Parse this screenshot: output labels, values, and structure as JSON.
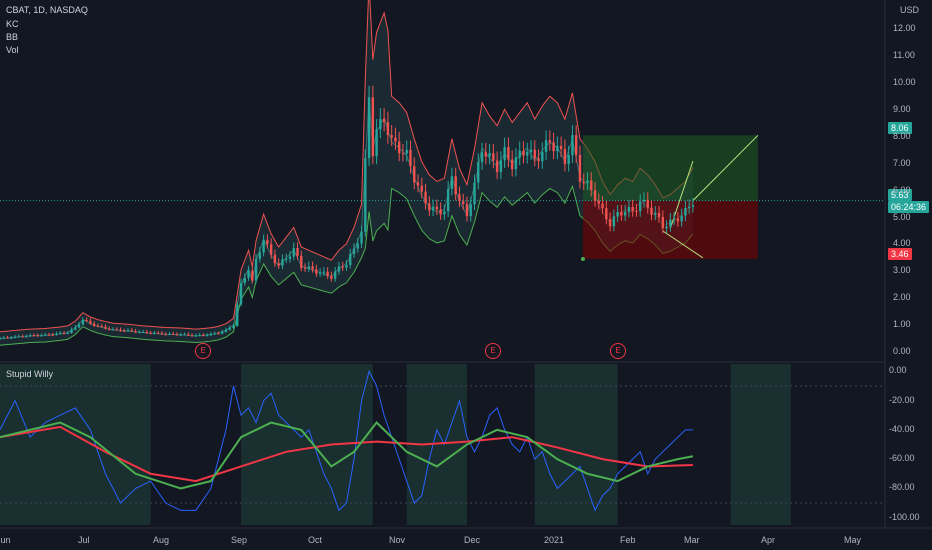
{
  "header": {
    "symbol_line": "CBAT, 1D, NASDAQ",
    "indicators": [
      "KC",
      "BB",
      "Vol"
    ],
    "currency": "USD"
  },
  "price_axis": {
    "labels": [
      "12.00",
      "11.00",
      "10.00",
      "9.00",
      "8.00",
      "7.00",
      "6.00",
      "5.00",
      "4.00",
      "3.00",
      "2.00",
      "1.00",
      "0.00"
    ],
    "tags": {
      "target": "8.06",
      "last": "5.63",
      "countdown": "06:24:36",
      "stop": "3.46"
    }
  },
  "time_axis": {
    "labels": [
      "Jun",
      "Jul",
      "Aug",
      "Sep",
      "Oct",
      "Nov",
      "Dec",
      "2021",
      "Feb",
      "Mar",
      "Apr",
      "May"
    ]
  },
  "earnings_badge": "E",
  "oscillator": {
    "title": "Stupid Willy",
    "labels": [
      "0.00",
      "-20.00",
      "-40.00",
      "-60.00",
      "-80.00",
      "-100.00"
    ]
  },
  "colors": {
    "background": "#131722",
    "bull": "#26a69a",
    "bear": "#ef5350",
    "band_upper": "#ef5350",
    "band_lower": "#4caf50",
    "target_zone": "#1b5e20",
    "stop_zone": "#7f0000",
    "osc_line": "#2962ff",
    "osc_fast": "#4caf50",
    "osc_slow": "#f23645"
  },
  "chart_data": {
    "type": "candlestick",
    "price_ylim": [
      -0.3,
      12.5
    ],
    "close_series": [
      [
        0,
        0.5
      ],
      [
        4,
        0.55
      ],
      [
        8,
        0.6
      ],
      [
        12,
        0.62
      ],
      [
        16,
        0.68
      ],
      [
        18,
        0.72
      ],
      [
        20,
        0.9
      ],
      [
        22,
        1.2
      ],
      [
        24,
        1.05
      ],
      [
        26,
        0.95
      ],
      [
        28,
        0.88
      ],
      [
        30,
        0.82
      ],
      [
        32,
        0.8
      ],
      [
        34,
        0.78
      ],
      [
        36,
        0.75
      ],
      [
        38,
        0.72
      ],
      [
        40,
        0.7
      ],
      [
        42,
        0.68
      ],
      [
        44,
        0.66
      ],
      [
        46,
        0.65
      ],
      [
        48,
        0.64
      ],
      [
        50,
        0.62
      ],
      [
        52,
        0.6
      ],
      [
        54,
        0.62
      ],
      [
        56,
        0.65
      ],
      [
        58,
        0.7
      ],
      [
        60,
        0.8
      ],
      [
        62,
        1.0
      ],
      [
        64,
        2.5
      ],
      [
        66,
        3.1
      ],
      [
        67,
        2.6
      ],
      [
        68,
        3.4
      ],
      [
        70,
        4.2
      ],
      [
        72,
        3.6
      ],
      [
        74,
        3.2
      ],
      [
        76,
        3.5
      ],
      [
        78,
        3.8
      ],
      [
        80,
        3.2
      ],
      [
        82,
        3.1
      ],
      [
        84,
        3.0
      ],
      [
        86,
        2.9
      ],
      [
        88,
        2.8
      ],
      [
        90,
        3.1
      ],
      [
        92,
        3.3
      ],
      [
        94,
        3.8
      ],
      [
        96,
        4.5
      ],
      [
        98,
        9.5
      ],
      [
        99,
        7.5
      ],
      [
        100,
        8.2
      ],
      [
        102,
        8.7
      ],
      [
        104,
        7.8
      ],
      [
        106,
        7.6
      ],
      [
        108,
        7.3
      ],
      [
        110,
        6.5
      ],
      [
        112,
        5.8
      ],
      [
        114,
        5.4
      ],
      [
        116,
        5.2
      ],
      [
        118,
        5.3
      ],
      [
        120,
        6.5
      ],
      [
        122,
        5.6
      ],
      [
        124,
        5.1
      ],
      [
        126,
        6.2
      ],
      [
        128,
        7.6
      ],
      [
        130,
        7.2
      ],
      [
        132,
        6.9
      ],
      [
        134,
        7.4
      ],
      [
        136,
        7.0
      ],
      [
        138,
        7.3
      ],
      [
        140,
        7.6
      ],
      [
        142,
        7.1
      ],
      [
        144,
        7.5
      ],
      [
        146,
        7.8
      ],
      [
        148,
        7.6
      ],
      [
        150,
        7.1
      ],
      [
        152,
        7.9
      ],
      [
        154,
        6.5
      ],
      [
        156,
        6.2
      ],
      [
        158,
        5.8
      ],
      [
        160,
        5.2
      ],
      [
        162,
        4.8
      ],
      [
        164,
        5.1
      ],
      [
        166,
        5.3
      ],
      [
        168,
        5.2
      ],
      [
        170,
        5.6
      ],
      [
        172,
        5.4
      ],
      [
        174,
        5.1
      ],
      [
        176,
        4.7
      ],
      [
        178,
        4.8
      ],
      [
        180,
        5.0
      ],
      [
        182,
        5.2
      ],
      [
        184,
        5.63
      ]
    ],
    "trade_setup": {
      "entry": 5.63,
      "target": 8.06,
      "stop": 3.46
    },
    "oscillator_ylim": [
      -105,
      5
    ],
    "oscillator_series": {
      "raw": [
        [
          0,
          -40
        ],
        [
          4,
          -20
        ],
        [
          8,
          -45
        ],
        [
          12,
          -35
        ],
        [
          16,
          -30
        ],
        [
          20,
          -25
        ],
        [
          24,
          -40
        ],
        [
          28,
          -70
        ],
        [
          32,
          -90
        ],
        [
          36,
          -80
        ],
        [
          40,
          -75
        ],
        [
          44,
          -90
        ],
        [
          48,
          -95
        ],
        [
          52,
          -95
        ],
        [
          56,
          -80
        ],
        [
          60,
          -40
        ],
        [
          62,
          -10
        ],
        [
          64,
          -30
        ],
        [
          66,
          -25
        ],
        [
          68,
          -35
        ],
        [
          70,
          -20
        ],
        [
          72,
          -15
        ],
        [
          74,
          -30
        ],
        [
          76,
          -35
        ],
        [
          78,
          -40
        ],
        [
          80,
          -45
        ],
        [
          82,
          -40
        ],
        [
          84,
          -55
        ],
        [
          86,
          -70
        ],
        [
          88,
          -80
        ],
        [
          90,
          -95
        ],
        [
          92,
          -90
        ],
        [
          94,
          -60
        ],
        [
          96,
          -20
        ],
        [
          98,
          0
        ],
        [
          100,
          -10
        ],
        [
          102,
          -30
        ],
        [
          104,
          -45
        ],
        [
          106,
          -60
        ],
        [
          108,
          -75
        ],
        [
          110,
          -90
        ],
        [
          112,
          -85
        ],
        [
          114,
          -60
        ],
        [
          116,
          -40
        ],
        [
          118,
          -50
        ],
        [
          120,
          -35
        ],
        [
          122,
          -20
        ],
        [
          124,
          -45
        ],
        [
          126,
          -55
        ],
        [
          128,
          -45
        ],
        [
          130,
          -30
        ],
        [
          132,
          -25
        ],
        [
          134,
          -40
        ],
        [
          136,
          -50
        ],
        [
          138,
          -55
        ],
        [
          140,
          -45
        ],
        [
          142,
          -60
        ],
        [
          144,
          -55
        ],
        [
          146,
          -70
        ],
        [
          148,
          -80
        ],
        [
          150,
          -75
        ],
        [
          152,
          -70
        ],
        [
          154,
          -65
        ],
        [
          156,
          -80
        ],
        [
          158,
          -95
        ],
        [
          160,
          -85
        ],
        [
          162,
          -80
        ],
        [
          164,
          -70
        ],
        [
          166,
          -65
        ],
        [
          168,
          -60
        ],
        [
          170,
          -55
        ],
        [
          172,
          -70
        ],
        [
          174,
          -60
        ],
        [
          176,
          -55
        ],
        [
          178,
          -50
        ],
        [
          180,
          -45
        ],
        [
          182,
          -40
        ],
        [
          184,
          -40
        ]
      ],
      "fast": [
        [
          0,
          -45
        ],
        [
          16,
          -35
        ],
        [
          24,
          -45
        ],
        [
          36,
          -70
        ],
        [
          48,
          -80
        ],
        [
          56,
          -75
        ],
        [
          64,
          -45
        ],
        [
          72,
          -35
        ],
        [
          80,
          -40
        ],
        [
          88,
          -65
        ],
        [
          94,
          -55
        ],
        [
          100,
          -35
        ],
        [
          108,
          -55
        ],
        [
          116,
          -65
        ],
        [
          124,
          -50
        ],
        [
          132,
          -40
        ],
        [
          140,
          -45
        ],
        [
          148,
          -60
        ],
        [
          156,
          -70
        ],
        [
          164,
          -75
        ],
        [
          172,
          -65
        ],
        [
          180,
          -60
        ],
        [
          184,
          -58
        ]
      ],
      "slow": [
        [
          0,
          -45
        ],
        [
          16,
          -38
        ],
        [
          28,
          -55
        ],
        [
          40,
          -70
        ],
        [
          52,
          -75
        ],
        [
          64,
          -65
        ],
        [
          76,
          -55
        ],
        [
          88,
          -50
        ],
        [
          100,
          -48
        ],
        [
          112,
          -50
        ],
        [
          124,
          -48
        ],
        [
          136,
          -45
        ],
        [
          148,
          -52
        ],
        [
          160,
          -60
        ],
        [
          172,
          -65
        ],
        [
          184,
          -64
        ]
      ]
    }
  }
}
